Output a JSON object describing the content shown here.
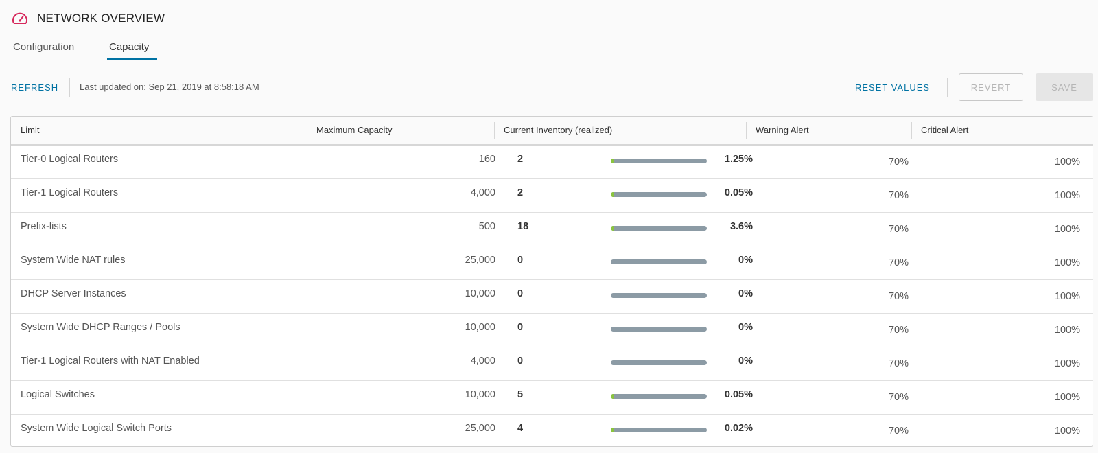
{
  "header": {
    "title": "NETWORK OVERVIEW",
    "icon": "dashboard-gauge-icon",
    "icon_color": "#d6285c"
  },
  "tabs": [
    {
      "label": "Configuration",
      "active": false
    },
    {
      "label": "Capacity",
      "active": true
    }
  ],
  "toolbar": {
    "refresh_label": "REFRESH",
    "last_updated": "Last updated on: Sep 21, 2019 at 8:58:18 AM",
    "reset_label": "RESET VALUES",
    "revert_label": "REVERT",
    "save_label": "SAVE"
  },
  "grid": {
    "columns": [
      "Limit",
      "Maximum Capacity",
      "Current Inventory (realized)",
      "Warning Alert",
      "Critical Alert"
    ],
    "rows": [
      {
        "name": "Tier-0 Logical Routers",
        "max": "160",
        "current": "2",
        "percent": "1.25%",
        "fraction": 0.0125,
        "warning": "70%",
        "critical": "100%"
      },
      {
        "name": "Tier-1 Logical Routers",
        "max": "4,000",
        "current": "2",
        "percent": "0.05%",
        "fraction": 0.0005,
        "warning": "70%",
        "critical": "100%"
      },
      {
        "name": "Prefix-lists",
        "max": "500",
        "current": "18",
        "percent": "3.6%",
        "fraction": 0.036,
        "warning": "70%",
        "critical": "100%"
      },
      {
        "name": "System Wide NAT rules",
        "max": "25,000",
        "current": "0",
        "percent": "0%",
        "fraction": 0,
        "warning": "70%",
        "critical": "100%"
      },
      {
        "name": "DHCP Server Instances",
        "max": "10,000",
        "current": "0",
        "percent": "0%",
        "fraction": 0,
        "warning": "70%",
        "critical": "100%"
      },
      {
        "name": "System Wide DHCP Ranges / Pools",
        "max": "10,000",
        "current": "0",
        "percent": "0%",
        "fraction": 0,
        "warning": "70%",
        "critical": "100%"
      },
      {
        "name": "Tier-1 Logical Routers with NAT Enabled",
        "max": "4,000",
        "current": "0",
        "percent": "0%",
        "fraction": 0,
        "warning": "70%",
        "critical": "100%"
      },
      {
        "name": "Logical Switches",
        "max": "10,000",
        "current": "5",
        "percent": "0.05%",
        "fraction": 0.0005,
        "warning": "70%",
        "critical": "100%"
      },
      {
        "name": "System Wide Logical Switch Ports",
        "max": "25,000",
        "current": "4",
        "percent": "0.02%",
        "fraction": 0.0002,
        "warning": "70%",
        "critical": "100%"
      }
    ]
  },
  "colors": {
    "accent": "#0072a3",
    "bar_track": "#8c9ba5",
    "bar_fill": "#8ac43f"
  }
}
